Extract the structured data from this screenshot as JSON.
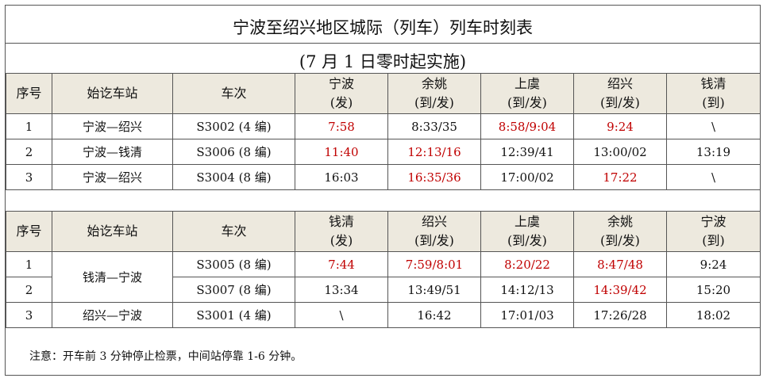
{
  "title": "宁波至绍兴地区城际（列车）列车时刻表",
  "subtitle": "(7 月 1 日零时起实施)",
  "table1": {
    "headers": {
      "seq": "序号",
      "route": "始讫车站",
      "train": "车次",
      "s1a": "宁波",
      "s1b": "(发)",
      "s2a": "余姚",
      "s2b": "(到/发)",
      "s3a": "上虞",
      "s3b": "(到/发)",
      "s4a": "绍兴",
      "s4b": "(到/发)",
      "s5a": "钱清",
      "s5b": "(到)"
    },
    "rows": [
      {
        "seq": "1",
        "route": "宁波—绍兴",
        "train": "S3002 (4 编)",
        "t1": "7:58",
        "t2": "8:33/35",
        "t3": "8:58/9:04",
        "t4": "9:24",
        "t5": "\\"
      },
      {
        "seq": "2",
        "route": "宁波—钱清",
        "train": "S3006 (8 编)",
        "t1": "11:40",
        "t2": "12:13/16",
        "t3": "12:39/41",
        "t4": "13:00/02",
        "t5": "13:19"
      },
      {
        "seq": "3",
        "route": "宁波—绍兴",
        "train": "S3004 (8 编)",
        "t1": "16:03",
        "t2": "16:35/36",
        "t3": "17:00/02",
        "t4": "17:22",
        "t5": "\\"
      }
    ]
  },
  "table2": {
    "headers": {
      "seq": "序号",
      "route": "始讫车站",
      "train": "车次",
      "s1a": "钱清",
      "s1b": "(发)",
      "s2a": "绍兴",
      "s2b": "(到/发)",
      "s3a": "上虞",
      "s3b": "(到/发)",
      "s4a": "余姚",
      "s4b": "(到/发)",
      "s5a": "宁波",
      "s5b": "(到)"
    },
    "route_merged": "钱清—宁波",
    "rows": [
      {
        "seq": "1",
        "train": "S3005 (8 编)",
        "t1": "7:44",
        "t2": "7:59/8:01",
        "t3": "8:20/22",
        "t4": "8:47/48",
        "t5": "9:24"
      },
      {
        "seq": "2",
        "train": "S3007 (8 编)",
        "t1": "13:34",
        "t2": "13:49/51",
        "t3": "14:12/13",
        "t4": "14:39/42",
        "t5": "15:20"
      },
      {
        "seq": "3",
        "route": "绍兴—宁波",
        "train": "S3001 (4 编)",
        "t1": "\\",
        "t2": "16:42",
        "t3": "17:01/03",
        "t4": "17:26/28",
        "t5": "18:02"
      }
    ]
  },
  "note": "注意：开车前 3 分钟停止检票，中间站停靠 1-6 分钟。",
  "colors": {
    "highlight": "#c00000",
    "header_bg": "#ede9de",
    "border": "#555555"
  }
}
